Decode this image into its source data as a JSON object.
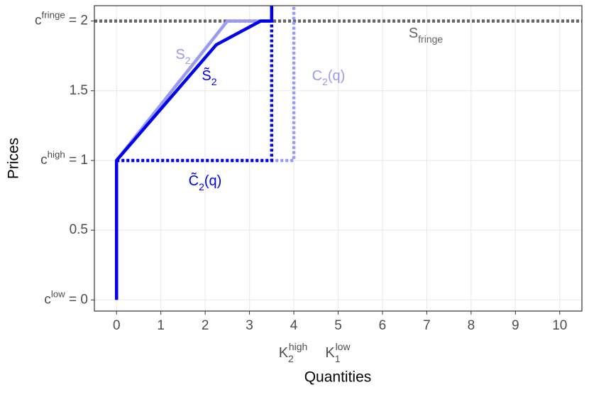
{
  "chart_data": {
    "type": "line",
    "x_label": "Quantities",
    "y_label": "Prices",
    "xlim": [
      -0.5,
      10.5
    ],
    "ylim": [
      -0.08,
      2.11
    ],
    "xticks": [
      0,
      1,
      2,
      3,
      4,
      5,
      6,
      7,
      8,
      9,
      10
    ],
    "yticks": [
      {
        "value": 0,
        "label": "c",
        "label_sup": "low",
        "label_after": " = 0"
      },
      0.5,
      {
        "value": 1,
        "label": "c",
        "label_sup": "high",
        "label_after": " = 1"
      },
      1.5,
      {
        "value": 2,
        "label": "c",
        "label_sup": "fringe",
        "label_after": " = 2"
      }
    ],
    "grid": true,
    "series": [
      {
        "color": "#666666",
        "dash": true,
        "x": [
          -0.5,
          10.5
        ],
        "values": [
          2,
          2
        ]
      },
      {
        "color": "#9a9af0",
        "dash": true,
        "x": [
          0,
          4,
          4
        ],
        "values": [
          1,
          1,
          2.11
        ]
      },
      {
        "color": "#9a9af0",
        "dash": false,
        "x": [
          0,
          2.5,
          3.5
        ],
        "values": [
          1,
          2,
          2
        ]
      },
      {
        "color": "#0000ee",
        "dash": true,
        "x": [
          0,
          3.5,
          3.5
        ],
        "values": [
          1,
          1,
          2.11
        ]
      },
      {
        "color": "#0000ee",
        "dash": false,
        "x": [
          0,
          0,
          2.25,
          3.25,
          3.5,
          3.5
        ],
        "values": [
          0,
          1,
          1.83,
          2,
          2,
          2.11
        ]
      }
    ],
    "annotations": [
      {
        "text": "S",
        "sub": "2",
        "after": "",
        "color": "#9a9af0"
      },
      {
        "text": "S̃",
        "sub": "2",
        "after": "",
        "color": "#0000ee"
      },
      {
        "text": "C",
        "sub": "2",
        "after": "(q)",
        "color": "#9a9af0"
      },
      {
        "text": "C̃",
        "sub": "2",
        "after": "(q)",
        "color": "#0000ee"
      },
      {
        "text": "S",
        "sub": "fringe",
        "after": "",
        "color": "#666666"
      }
    ],
    "axis_annotations": [
      {
        "text": "K",
        "sub": "2",
        "sup": "high"
      },
      {
        "text": "K",
        "sub": "1",
        "sup": "low"
      }
    ]
  }
}
